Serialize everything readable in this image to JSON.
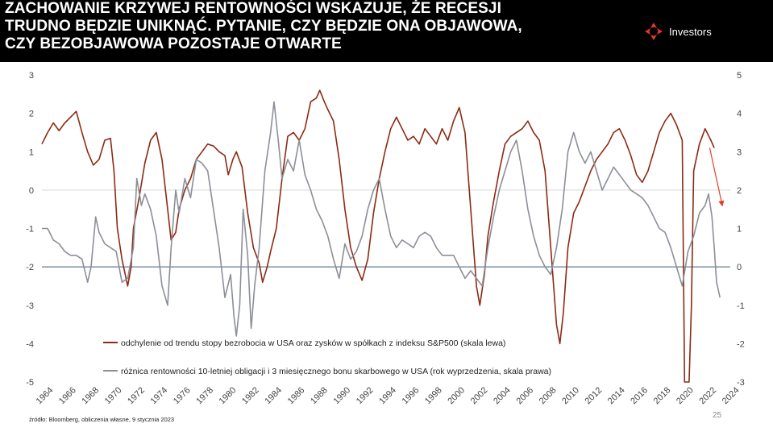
{
  "header": {
    "title_lines": [
      "ZACHOWANIE KRZYWEJ RENTOWNOŚCI WSKAZUJE, ŻE RECESJI",
      "TRUDNO BĘDZIE UNIKNĄĆ. PYTANIE, CZY BĘDZIE ONA OBJAWOWA,",
      "CZY BEZOBJAWOWA POZOSTAJE OTWARTE"
    ],
    "logo_text": "Investors",
    "logo_icon": "investors-logo-icon",
    "background": "#000000"
  },
  "footer": {
    "source": "źródło: Bloomberg, obliczenia własne, 9 stycznia 2023",
    "page_number": "25"
  },
  "chart_data": {
    "type": "line",
    "title": "",
    "x_ticks": [
      "1964",
      "1966",
      "1968",
      "1970",
      "1972",
      "1974",
      "1976",
      "1978",
      "1980",
      "1982",
      "1984",
      "1986",
      "1988",
      "1990",
      "1992",
      "1994",
      "1996",
      "1998",
      "2000",
      "2002",
      "2004",
      "2006",
      "2008",
      "2010",
      "2012",
      "2014",
      "2016",
      "2018",
      "2020",
      "2022",
      "2024"
    ],
    "xlim": [
      1964,
      2024.2
    ],
    "ylim_left": [
      -5,
      3
    ],
    "ylim_right": [
      -3,
      5
    ],
    "y_ticks_left": [
      "3",
      "2",
      "1",
      "0",
      "-1",
      "-2",
      "-3",
      "-4",
      "-5"
    ],
    "y_ticks_right": [
      "5",
      "4",
      "3",
      "2",
      "1",
      "0",
      "-1",
      "-2",
      "-3"
    ],
    "reference_line": {
      "axis": "right",
      "y": 0
    },
    "annotation": {
      "type": "arrow",
      "color": "#e0402a",
      "from": {
        "x": 2022.4,
        "y_left": 1.1
      },
      "to": {
        "x": 2023.5,
        "y_left": -0.4
      }
    },
    "series": [
      {
        "name": "odchylenie od trendu stopy bezrobocia w USA oraz zysków w spółkach z indeksu S&P500 (skala lewa)",
        "axis": "left",
        "color": "#8c2a14",
        "points": [
          [
            1964,
            1.2
          ],
          [
            1964.5,
            1.5
          ],
          [
            1965,
            1.75
          ],
          [
            1965.5,
            1.55
          ],
          [
            1966,
            1.75
          ],
          [
            1966.5,
            1.9
          ],
          [
            1967,
            2.05
          ],
          [
            1967.5,
            1.5
          ],
          [
            1968,
            1.0
          ],
          [
            1968.5,
            0.65
          ],
          [
            1969,
            0.8
          ],
          [
            1969.5,
            1.3
          ],
          [
            1970,
            1.35
          ],
          [
            1970.3,
            0.5
          ],
          [
            1970.6,
            -1.0
          ],
          [
            1971,
            -1.8
          ],
          [
            1971.5,
            -2.5
          ],
          [
            1971.8,
            -2.0
          ],
          [
            1972,
            -1.0
          ],
          [
            1972.5,
            -0.2
          ],
          [
            1973,
            0.7
          ],
          [
            1973.5,
            1.3
          ],
          [
            1974,
            1.5
          ],
          [
            1974.5,
            0.8
          ],
          [
            1975,
            -0.5
          ],
          [
            1975.3,
            -1.3
          ],
          [
            1975.7,
            -1.1
          ],
          [
            1976,
            -0.5
          ],
          [
            1976.5,
            0.0
          ],
          [
            1977,
            0.3
          ],
          [
            1977.5,
            0.8
          ],
          [
            1978,
            1.0
          ],
          [
            1978.5,
            1.2
          ],
          [
            1979,
            1.15
          ],
          [
            1979.5,
            1.0
          ],
          [
            1980,
            0.9
          ],
          [
            1980.3,
            0.4
          ],
          [
            1980.7,
            0.8
          ],
          [
            1981,
            1.0
          ],
          [
            1981.5,
            0.6
          ],
          [
            1982,
            -0.6
          ],
          [
            1982.5,
            -1.5
          ],
          [
            1983,
            -1.9
          ],
          [
            1983.3,
            -2.4
          ],
          [
            1983.7,
            -2.0
          ],
          [
            1984,
            -1.6
          ],
          [
            1984.5,
            -1.0
          ],
          [
            1985,
            0.3
          ],
          [
            1985.5,
            1.4
          ],
          [
            1986,
            1.5
          ],
          [
            1986.5,
            1.3
          ],
          [
            1987,
            1.6
          ],
          [
            1987.5,
            2.3
          ],
          [
            1988,
            2.4
          ],
          [
            1988.3,
            2.6
          ],
          [
            1988.7,
            2.3
          ],
          [
            1989,
            2.1
          ],
          [
            1989.5,
            1.8
          ],
          [
            1990,
            0.8
          ],
          [
            1990.5,
            -0.5
          ],
          [
            1991,
            -1.5
          ],
          [
            1991.5,
            -2.0
          ],
          [
            1992,
            -2.35
          ],
          [
            1992.5,
            -1.8
          ],
          [
            1993,
            -0.6
          ],
          [
            1993.5,
            0.3
          ],
          [
            1994,
            1.0
          ],
          [
            1994.5,
            1.6
          ],
          [
            1995,
            1.9
          ],
          [
            1995.5,
            1.6
          ],
          [
            1996,
            1.3
          ],
          [
            1996.5,
            1.4
          ],
          [
            1997,
            1.2
          ],
          [
            1997.5,
            1.6
          ],
          [
            1998,
            1.4
          ],
          [
            1998.5,
            1.2
          ],
          [
            1999,
            1.6
          ],
          [
            1999.5,
            1.3
          ],
          [
            2000,
            1.8
          ],
          [
            2000.5,
            2.15
          ],
          [
            2001,
            1.5
          ],
          [
            2001.5,
            -0.5
          ],
          [
            2002,
            -2.5
          ],
          [
            2002.3,
            -3.0
          ],
          [
            2002.7,
            -2.2
          ],
          [
            2003,
            -1.2
          ],
          [
            2003.5,
            -0.3
          ],
          [
            2004,
            0.5
          ],
          [
            2004.5,
            1.2
          ],
          [
            2005,
            1.4
          ],
          [
            2005.5,
            1.5
          ],
          [
            2006,
            1.6
          ],
          [
            2006.5,
            1.8
          ],
          [
            2007,
            1.5
          ],
          [
            2007.5,
            1.3
          ],
          [
            2008,
            0.5
          ],
          [
            2008.5,
            -1.5
          ],
          [
            2009,
            -3.5
          ],
          [
            2009.3,
            -4.0
          ],
          [
            2009.6,
            -3.2
          ],
          [
            2010,
            -1.5
          ],
          [
            2010.5,
            -0.6
          ],
          [
            2011,
            -0.3
          ],
          [
            2011.5,
            0.1
          ],
          [
            2012,
            0.5
          ],
          [
            2012.5,
            0.8
          ],
          [
            2013,
            1.0
          ],
          [
            2013.5,
            1.2
          ],
          [
            2014,
            1.5
          ],
          [
            2014.5,
            1.6
          ],
          [
            2015,
            1.3
          ],
          [
            2015.5,
            0.9
          ],
          [
            2016,
            0.4
          ],
          [
            2016.5,
            0.2
          ],
          [
            2017,
            0.5
          ],
          [
            2017.5,
            1.0
          ],
          [
            2018,
            1.5
          ],
          [
            2018.5,
            1.8
          ],
          [
            2019,
            2.0
          ],
          [
            2019.5,
            1.7
          ],
          [
            2020,
            1.3
          ],
          [
            2020.2,
            -5.0
          ],
          [
            2020.6,
            -5.0
          ],
          [
            2020.8,
            -3.0
          ],
          [
            2021,
            0.5
          ],
          [
            2021.5,
            1.2
          ],
          [
            2022,
            1.6
          ],
          [
            2022.5,
            1.3
          ],
          [
            2022.8,
            1.1
          ]
        ]
      },
      {
        "name": "różnica rentowności 10-letniej obligacji i 3 miesięcznego bonu skarbowego w USA (rok wyprzedzenia, skala prawa)",
        "axis": "right",
        "color": "#8c8f99",
        "points": [
          [
            1964,
            1.0
          ],
          [
            1964.5,
            1.0
          ],
          [
            1965,
            0.7
          ],
          [
            1965.5,
            0.6
          ],
          [
            1966,
            0.4
          ],
          [
            1966.5,
            0.3
          ],
          [
            1967,
            0.3
          ],
          [
            1967.5,
            0.2
          ],
          [
            1968,
            -0.4
          ],
          [
            1968.3,
            0.0
          ],
          [
            1968.7,
            1.3
          ],
          [
            1969,
            0.9
          ],
          [
            1969.5,
            0.6
          ],
          [
            1970,
            0.5
          ],
          [
            1970.5,
            0.4
          ],
          [
            1971,
            -0.4
          ],
          [
            1971.5,
            -0.3
          ],
          [
            1972,
            0.5
          ],
          [
            1972.3,
            2.3
          ],
          [
            1972.7,
            1.6
          ],
          [
            1973,
            1.9
          ],
          [
            1973.5,
            1.5
          ],
          [
            1974,
            0.8
          ],
          [
            1974.5,
            -0.5
          ],
          [
            1975,
            -1.0
          ],
          [
            1975.3,
            0.5
          ],
          [
            1975.7,
            2.0
          ],
          [
            1976,
            1.4
          ],
          [
            1976.5,
            2.3
          ],
          [
            1977,
            1.8
          ],
          [
            1977.5,
            2.8
          ],
          [
            1978,
            2.7
          ],
          [
            1978.5,
            2.5
          ],
          [
            1979,
            1.5
          ],
          [
            1979.5,
            0.5
          ],
          [
            1980,
            -0.8
          ],
          [
            1980.5,
            -0.2
          ],
          [
            1980.8,
            -1.3
          ],
          [
            1981,
            -1.8
          ],
          [
            1981.3,
            -1.0
          ],
          [
            1981.6,
            1.5
          ],
          [
            1982,
            0.3
          ],
          [
            1982.3,
            -1.6
          ],
          [
            1982.6,
            -0.5
          ],
          [
            1983,
            0.5
          ],
          [
            1983.5,
            2.5
          ],
          [
            1984,
            3.5
          ],
          [
            1984.3,
            4.3
          ],
          [
            1984.7,
            3.2
          ],
          [
            1985,
            2.3
          ],
          [
            1985.5,
            2.8
          ],
          [
            1986,
            2.5
          ],
          [
            1986.5,
            3.3
          ],
          [
            1987,
            2.4
          ],
          [
            1987.5,
            2.0
          ],
          [
            1988,
            1.5
          ],
          [
            1988.5,
            1.2
          ],
          [
            1989,
            0.8
          ],
          [
            1989.5,
            0.2
          ],
          [
            1990,
            -0.3
          ],
          [
            1990.5,
            0.6
          ],
          [
            1991,
            0.2
          ],
          [
            1991.5,
            0.4
          ],
          [
            1992,
            0.8
          ],
          [
            1992.5,
            1.5
          ],
          [
            1993,
            2.0
          ],
          [
            1993.5,
            2.3
          ],
          [
            1994,
            1.5
          ],
          [
            1994.5,
            0.8
          ],
          [
            1995,
            0.5
          ],
          [
            1995.5,
            0.7
          ],
          [
            1996,
            0.6
          ],
          [
            1996.5,
            0.5
          ],
          [
            1997,
            0.8
          ],
          [
            1997.5,
            0.9
          ],
          [
            1998,
            0.8
          ],
          [
            1998.5,
            0.5
          ],
          [
            1999,
            0.3
          ],
          [
            1999.5,
            0.3
          ],
          [
            2000,
            0.3
          ],
          [
            2000.5,
            0.0
          ],
          [
            2001,
            -0.3
          ],
          [
            2001.5,
            -0.1
          ],
          [
            2002,
            -0.3
          ],
          [
            2002.5,
            -0.5
          ],
          [
            2003,
            0.5
          ],
          [
            2003.5,
            1.3
          ],
          [
            2004,
            2.0
          ],
          [
            2004.5,
            2.5
          ],
          [
            2005,
            3.0
          ],
          [
            2005.5,
            3.3
          ],
          [
            2006,
            2.5
          ],
          [
            2006.5,
            1.5
          ],
          [
            2007,
            0.8
          ],
          [
            2007.5,
            0.3
          ],
          [
            2008,
            0.0
          ],
          [
            2008.5,
            -0.2
          ],
          [
            2009,
            0.5
          ],
          [
            2009.5,
            1.5
          ],
          [
            2010,
            3.0
          ],
          [
            2010.5,
            3.5
          ],
          [
            2011,
            3.0
          ],
          [
            2011.5,
            2.7
          ],
          [
            2012,
            3.0
          ],
          [
            2012.5,
            2.5
          ],
          [
            2013,
            2.0
          ],
          [
            2013.5,
            2.3
          ],
          [
            2014,
            2.6
          ],
          [
            2014.5,
            2.4
          ],
          [
            2015,
            2.2
          ],
          [
            2015.5,
            2.0
          ],
          [
            2016,
            1.9
          ],
          [
            2016.5,
            1.8
          ],
          [
            2017,
            1.6
          ],
          [
            2017.5,
            1.3
          ],
          [
            2018,
            1.0
          ],
          [
            2018.5,
            0.9
          ],
          [
            2019,
            0.5
          ],
          [
            2019.5,
            0.0
          ],
          [
            2020,
            -0.5
          ],
          [
            2020.5,
            0.4
          ],
          [
            2021,
            0.8
          ],
          [
            2021.5,
            1.4
          ],
          [
            2022,
            1.6
          ],
          [
            2022.3,
            1.9
          ],
          [
            2022.6,
            1.3
          ],
          [
            2022.8,
            0.5
          ],
          [
            2023,
            -0.4
          ],
          [
            2023.3,
            -0.8
          ]
        ]
      }
    ]
  }
}
